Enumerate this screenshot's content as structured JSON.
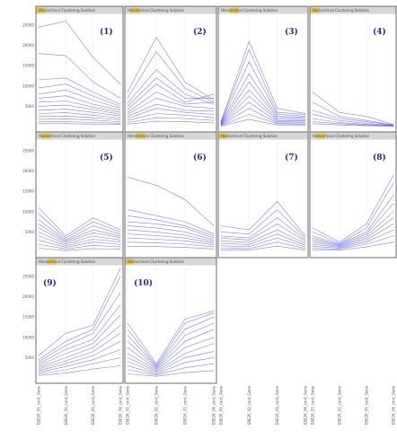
{
  "chart_data": {
    "type": "line",
    "layout": "small multiples, 4 columns x 3 rows",
    "panel_title": "Hierarchical Clustering Solution",
    "x": [
      "EAE26_01_cont_Gene",
      "EAE26_02_cont_Gene",
      "EAE26_03_cont_Gene",
      "EAE26_04_cont_Gene"
    ],
    "y_ticks": [
      5000,
      10000,
      15000,
      20000,
      25000
    ],
    "ylim": [
      0,
      27000
    ],
    "grid": false,
    "color": "#1b1bd6",
    "panels": [
      {
        "label": "(1)",
        "series": [
          [
            24500,
            26000,
            17000,
            10500
          ],
          [
            18000,
            17500,
            11000,
            7000
          ],
          [
            11500,
            12000,
            8500,
            5500
          ],
          [
            9500,
            10500,
            7500,
            5000
          ],
          [
            8000,
            9000,
            6500,
            4500
          ],
          [
            7000,
            7600,
            5500,
            4000
          ],
          [
            6000,
            6300,
            4800,
            3500
          ],
          [
            5000,
            5300,
            4200,
            3000
          ],
          [
            4000,
            4300,
            3500,
            2600
          ],
          [
            3200,
            3400,
            2800,
            2100
          ],
          [
            2500,
            2600,
            2200,
            1700
          ],
          [
            1800,
            1900,
            1600,
            1200
          ],
          [
            1200,
            1200,
            1000,
            800
          ],
          [
            700,
            700,
            600,
            500
          ]
        ]
      },
      {
        "label": "(2)",
        "series": [
          [
            8500,
            22000,
            11000,
            6500
          ],
          [
            7000,
            18500,
            9500,
            6000
          ],
          [
            5800,
            14000,
            8000,
            5500
          ],
          [
            5000,
            12000,
            7000,
            7000
          ],
          [
            4200,
            10500,
            6000,
            8000
          ],
          [
            3500,
            8500,
            5500,
            6000
          ],
          [
            3000,
            7000,
            5000,
            4500
          ],
          [
            2500,
            5500,
            4000,
            3800
          ],
          [
            2000,
            4500,
            3500,
            3000
          ],
          [
            1500,
            3200,
            2800,
            2200
          ],
          [
            1000,
            2200,
            2000,
            1500
          ],
          [
            600,
            1300,
            1200,
            900
          ]
        ]
      },
      {
        "label": "(3)",
        "series": [
          [
            1200,
            21000,
            4500,
            3200
          ],
          [
            1000,
            19000,
            3500,
            3000
          ],
          [
            900,
            16000,
            3000,
            2600
          ],
          [
            800,
            13000,
            2500,
            2300
          ],
          [
            700,
            11000,
            2200,
            2000
          ],
          [
            600,
            9000,
            1800,
            1700
          ],
          [
            500,
            7500,
            1500,
            1400
          ],
          [
            400,
            6000,
            1200,
            1100
          ],
          [
            350,
            4500,
            900,
            900
          ],
          [
            250,
            3000,
            700,
            600
          ],
          [
            150,
            1800,
            400,
            400
          ]
        ]
      },
      {
        "label": "(4)",
        "series": [
          [
            8500,
            3500,
            2500,
            500
          ],
          [
            6000,
            2500,
            1500,
            400
          ],
          [
            4000,
            2000,
            1200,
            300
          ],
          [
            3000,
            1500,
            800,
            250
          ],
          [
            2000,
            1000,
            500,
            200
          ],
          [
            1200,
            700,
            300,
            150
          ],
          [
            700,
            400,
            200,
            100
          ]
        ]
      },
      {
        "label": "(5)",
        "series": [
          [
            11000,
            4000,
            8500,
            5500
          ],
          [
            9500,
            3500,
            7500,
            5000
          ],
          [
            8000,
            3000,
            6500,
            4500
          ],
          [
            7000,
            2700,
            5500,
            4000
          ],
          [
            6000,
            2400,
            4800,
            3600
          ],
          [
            5000,
            2000,
            4000,
            3000
          ],
          [
            4000,
            1600,
            3200,
            2500
          ],
          [
            3000,
            1200,
            2500,
            1900
          ],
          [
            2000,
            800,
            1700,
            1300
          ],
          [
            1000,
            400,
            900,
            700
          ]
        ]
      },
      {
        "label": "(6)",
        "series": [
          [
            18500,
            16500,
            13000,
            6500
          ],
          [
            10500,
            9000,
            7500,
            4500
          ],
          [
            9000,
            8000,
            6500,
            4000
          ],
          [
            7500,
            7000,
            6000,
            3500
          ],
          [
            6500,
            6000,
            5000,
            3000
          ],
          [
            5500,
            5000,
            4200,
            2600
          ],
          [
            4500,
            4100,
            3500,
            2200
          ],
          [
            3500,
            3200,
            2800,
            1800
          ],
          [
            2500,
            2300,
            2000,
            1300
          ],
          [
            1500,
            1400,
            1200,
            800
          ]
        ]
      },
      {
        "label": "(7)",
        "series": [
          [
            6500,
            5500,
            12500,
            4000
          ],
          [
            5000,
            4500,
            10500,
            3500
          ],
          [
            4000,
            3500,
            8500,
            3000
          ],
          [
            3500,
            3000,
            7000,
            2600
          ],
          [
            2800,
            2400,
            5500,
            2100
          ],
          [
            2200,
            1900,
            4500,
            1700
          ],
          [
            1600,
            1400,
            3500,
            1300
          ],
          [
            1000,
            900,
            2500,
            900
          ],
          [
            500,
            500,
            1500,
            500
          ]
        ]
      },
      {
        "label": "(8)",
        "series": [
          [
            6000,
            2500,
            7000,
            19000
          ],
          [
            5000,
            2200,
            6000,
            17000
          ],
          [
            4000,
            2000,
            5000,
            14000
          ],
          [
            3500,
            1800,
            4500,
            12000
          ],
          [
            3000,
            1600,
            4000,
            10000
          ],
          [
            2500,
            1400,
            3500,
            8500
          ],
          [
            2000,
            1200,
            3000,
            7000
          ],
          [
            1500,
            1000,
            2500,
            5500
          ],
          [
            1000,
            800,
            2000,
            4000
          ],
          [
            600,
            500,
            1300,
            2500
          ]
        ]
      },
      {
        "label": "(9)",
        "series": [
          [
            5500,
            11000,
            13000,
            27000
          ],
          [
            4500,
            9000,
            12000,
            25000
          ],
          [
            4000,
            8000,
            11000,
            21000
          ],
          [
            3500,
            7000,
            9500,
            18000
          ],
          [
            3000,
            6000,
            8500,
            15500
          ],
          [
            2600,
            5000,
            7500,
            13000
          ],
          [
            2200,
            4200,
            6500,
            11000
          ],
          [
            1800,
            3500,
            5500,
            9000
          ],
          [
            1400,
            2800,
            4500,
            7000
          ],
          [
            1000,
            2000,
            3500,
            5000
          ],
          [
            600,
            1200,
            2200,
            3000
          ]
        ]
      },
      {
        "label": "(10)",
        "series": [
          [
            13500,
            3500,
            14500,
            16500
          ],
          [
            12000,
            3000,
            13500,
            16000
          ],
          [
            10500,
            2800,
            12000,
            15000
          ],
          [
            9000,
            2500,
            10500,
            13500
          ],
          [
            7500,
            2200,
            9000,
            12000
          ],
          [
            6000,
            1900,
            7500,
            10000
          ],
          [
            5000,
            1600,
            6000,
            8500
          ],
          [
            4000,
            1300,
            5000,
            6500
          ],
          [
            3000,
            1000,
            3800,
            5000
          ],
          [
            2000,
            700,
            2500,
            3500
          ],
          [
            1000,
            400,
            1300,
            1800
          ]
        ]
      }
    ]
  }
}
